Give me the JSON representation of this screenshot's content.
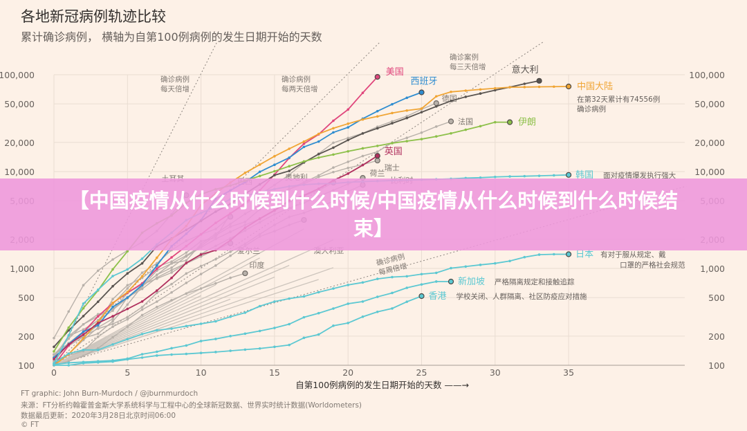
{
  "banner": {
    "text": "【中国疫情从什么时候到什么时候/中国疫情从什么时候到什么时候结束】"
  },
  "footer": {
    "credit": "FT graphic: John Burn-Murdoch / @jburnmurdoch",
    "source": "来源：FT分析约翰霍普金斯大学系统科学与工程中心的全球新冠数据、世界实时统计数据(Worldometers)",
    "updated": "数据最后更新：2020年3月28日北京时间06:00",
    "copyright": "© FT"
  },
  "chart_data": {
    "type": "line",
    "title": "各地新冠病例轨迹比较",
    "subtitle": "累计确诊病例，  横轴为自第100例病例的发生日期开始的天数",
    "xlabel": "自第100例病例的发生日期开始的天数 ——→",
    "ylabel": "",
    "xlim": [
      0,
      35
    ],
    "ylim": [
      100,
      100000
    ],
    "yscale": "log",
    "x_ticks": [
      0,
      5,
      10,
      15,
      20,
      25,
      30,
      35
    ],
    "y_ticks": [
      100,
      200,
      500,
      1000,
      2000,
      5000,
      10000,
      20000,
      50000,
      100000
    ],
    "y_tick_labels": [
      "100",
      "200",
      "500",
      "1,000",
      "2,000",
      "5,000",
      "10,000",
      "20,000",
      "50,000",
      "100,000"
    ],
    "grid": true,
    "reference_lines": [
      {
        "label1": "确诊病例",
        "label2": "每天倍增",
        "doubling_days": 1
      },
      {
        "label1": "确诊病例",
        "label2": "每两天倍增",
        "doubling_days": 2
      },
      {
        "label1": "确诊案例",
        "label2": "每三天倍增",
        "doubling_days": 3
      },
      {
        "label1": "确诊病例",
        "label2": "每周倍增",
        "doubling_days": 7
      }
    ],
    "series": [
      {
        "name": "美国",
        "color": "#e0467c",
        "values": [
          100,
          160,
          220,
          320,
          440,
          560,
          700,
          990,
          1300,
          1700,
          2250,
          2950,
          3700,
          4700,
          6400,
          9300,
          13800,
          19400,
          24200,
          33500,
          43700,
          65000,
          95000
        ]
      },
      {
        "name": "西班牙",
        "color": "#2f8dd0",
        "values": [
          120,
          165,
          222,
          259,
          400,
          500,
          673,
          1073,
          1695,
          2277,
          3146,
          5232,
          6391,
          7798,
          9942,
          11748,
          13910,
          17963,
          20410,
          25374,
          28603,
          35136,
          42058,
          49515,
          57786,
          65719
        ]
      },
      {
        "name": "意大利",
        "color": "#595450",
        "values": [
          155,
          229,
          322,
          453,
          655,
          888,
          1128,
          1694,
          2036,
          2502,
          3089,
          3858,
          4636,
          5883,
          7375,
          9172,
          10149,
          12462,
          15113,
          17660,
          21157,
          24747,
          27980,
          31506,
          35713,
          41035,
          47021,
          53578,
          59138,
          63927,
          69176,
          74386,
          80589,
          86498
        ]
      },
      {
        "name": "中国大陆",
        "color": "#f0a535",
        "note": "在第32天累计有74556例确诊病例",
        "values": [
          100,
          130,
          190,
          280,
          440,
          570,
          830,
          1290,
          2000,
          2740,
          4500,
          5970,
          7700,
          9690,
          11800,
          14400,
          17200,
          20400,
          24500,
          28000,
          31200,
          34500,
          37100,
          40200,
          42700,
          44700,
          59800,
          66500,
          68500,
          70500,
          72400,
          74200,
          74556,
          75000,
          75300,
          75600
        ]
      },
      {
        "name": "德国",
        "color": "#b8b1aa",
        "values": [
          130,
          159,
          196,
          262,
          482,
          670,
          799,
          1040,
          1176,
          1457,
          1908,
          2078,
          3675,
          4585,
          5795,
          7272,
          9257,
          12327,
          15320,
          19848,
          22213,
          24873,
          29056,
          32986,
          37323,
          43938,
          50871
        ]
      },
      {
        "name": "法国",
        "color": "#b8b1aa",
        "values": [
          100,
          130,
          191,
          212,
          285,
          423,
          653,
          949,
          1126,
          1209,
          1784,
          2281,
          2876,
          3661,
          4469,
          5423,
          6633,
          7730,
          9134,
          10995,
          12612,
          14459,
          16018,
          19856,
          22304,
          25233,
          29155,
          32964
        ]
      },
      {
        "name": "伊朗",
        "color": "#8dc04a",
        "values": [
          139,
          245,
          388,
          593,
          978,
          1501,
          2336,
          2922,
          3513,
          4747,
          5823,
          6566,
          7161,
          8042,
          9000,
          10075,
          11364,
          12729,
          13938,
          14991,
          16169,
          17361,
          18407,
          19644,
          20610,
          21638,
          23049,
          24811,
          27017,
          29406,
          32332,
          32332
        ]
      },
      {
        "name": "英国",
        "color": "#b0305e",
        "values": [
          116,
          164,
          207,
          273,
          321,
          382,
          456,
          590,
          798,
          1140,
          1391,
          1543,
          1950,
          2626,
          3269,
          3983,
          5018,
          5683,
          6650,
          8077,
          9529,
          11658,
          14543
        ]
      },
      {
        "name": "瑞士",
        "color": "#b8b1aa",
        "values": [
          120,
          200,
          265,
          337,
          374,
          491,
          652,
          858,
          1125,
          1359,
          1700,
          2200,
          2700,
          3028,
          4075,
          5294,
          6575,
          7474,
          8795,
          9877,
          10897,
          11811,
          13000
        ]
      },
      {
        "name": "奥地利",
        "color": "#b8b1aa",
        "values": [
          104,
          131,
          182,
          246,
          302,
          504,
          655,
          860,
          1018,
          1332,
          1646,
          2013,
          2388,
          2814,
          3244,
          3924,
          4876,
          5588,
          6398,
          7697
        ]
      },
      {
        "name": "荷兰",
        "color": "#b8b1aa",
        "values": [
          128,
          188,
          265,
          321,
          382,
          503,
          614,
          804,
          959,
          1135,
          1413,
          1705,
          2051,
          2460,
          2994,
          3631,
          4204,
          4749,
          5560,
          6412,
          7431,
          8603
        ]
      },
      {
        "name": "比利时",
        "color": "#b8b1aa",
        "values": [
          109,
          169,
          200,
          239,
          267,
          314,
          399,
          559,
          689,
          886,
          1058,
          1243,
          1486,
          1795,
          2257,
          2815,
          3401,
          3743,
          4269,
          4937,
          6235,
          7284
        ]
      },
      {
        "name": "土耳其",
        "color": "#b8b1aa",
        "values": [
          191,
          359,
          670,
          947,
          1236,
          1529,
          1872,
          2433,
          3629,
          5698
        ]
      },
      {
        "name": "巴西",
        "color": "#b8b1aa",
        "values": [
          121,
          200,
          234,
          291,
          428,
          621,
          904,
          1128,
          1546,
          1924,
          2247,
          2554,
          3417
        ]
      },
      {
        "name": "爱尔兰",
        "color": "#b8b1aa",
        "values": [
          129,
          169,
          223,
          292,
          366,
          557,
          683,
          785,
          906,
          1125,
          1329,
          1564,
          1819
        ]
      },
      {
        "name": "澳大利亚",
        "color": "#b8b1aa",
        "values": [
          112,
          127,
          140,
          197,
          250,
          298,
          375,
          454,
          565,
          709,
          875,
          1071,
          1352,
          1709,
          2136,
          2423,
          2810,
          3166
        ]
      },
      {
        "name": "印度",
        "color": "#b8b1aa",
        "values": [
          100,
          110,
          125,
          150,
          195,
          250,
          330,
          400,
          470,
          550,
          620,
          700,
          800,
          890
        ]
      },
      {
        "name": "韩国",
        "color": "#5cc8d2",
        "note": "面对疫情爆发执行强大",
        "values": [
          104,
          204,
          433,
          602,
          833,
          977,
          1261,
          1766,
          2337,
          3150,
          3736,
          4335,
          5186,
          5621,
          6088,
          6593,
          7041,
          7313,
          7478,
          7513,
          7755,
          7869,
          7979,
          8086,
          8162,
          8236,
          8320,
          8413,
          8565,
          8652,
          8799,
          8897,
          8961,
          9037,
          9137,
          9241
        ]
      },
      {
        "name": "日本",
        "color": "#5cc8d2",
        "note": "有对于服从规定、戴口罩的严格社会规范",
        "values": [
          105,
          132,
          144,
          144,
          164,
          186,
          210,
          230,
          239,
          254,
          268,
          284,
          317,
          349,
          408,
          455,
          488,
          514,
          568,
          620,
          675,
          716,
          780,
          814,
          829,
          873,
          900,
          1007,
          1046,
          1089,
          1128,
          1193,
          1307,
          1387,
          1401,
          1401
        ]
      },
      {
        "name": "新加坡",
        "color": "#5cc8d2",
        "note": "严格隔离规定和接触追踪",
        "values": [
          102,
          106,
          108,
          110,
          112,
          117,
          130,
          138,
          150,
          160,
          178,
          187,
          200,
          212,
          226,
          243,
          266,
          313,
          345,
          385,
          432,
          455,
          509,
          558,
          631,
          683,
          732,
          732
        ]
      },
      {
        "name": "香港",
        "color": "#5cc8d2",
        "note": "学校关闭、人群隔离、社区防疫应对措施",
        "values": [
          100,
          100,
          105,
          107,
          109,
          115,
          120,
          126,
          129,
          131,
          134,
          137,
          141,
          145,
          149,
          155,
          162,
          192,
          208,
          256,
          273,
          317,
          356,
          386,
          453,
          518
        ]
      }
    ]
  }
}
